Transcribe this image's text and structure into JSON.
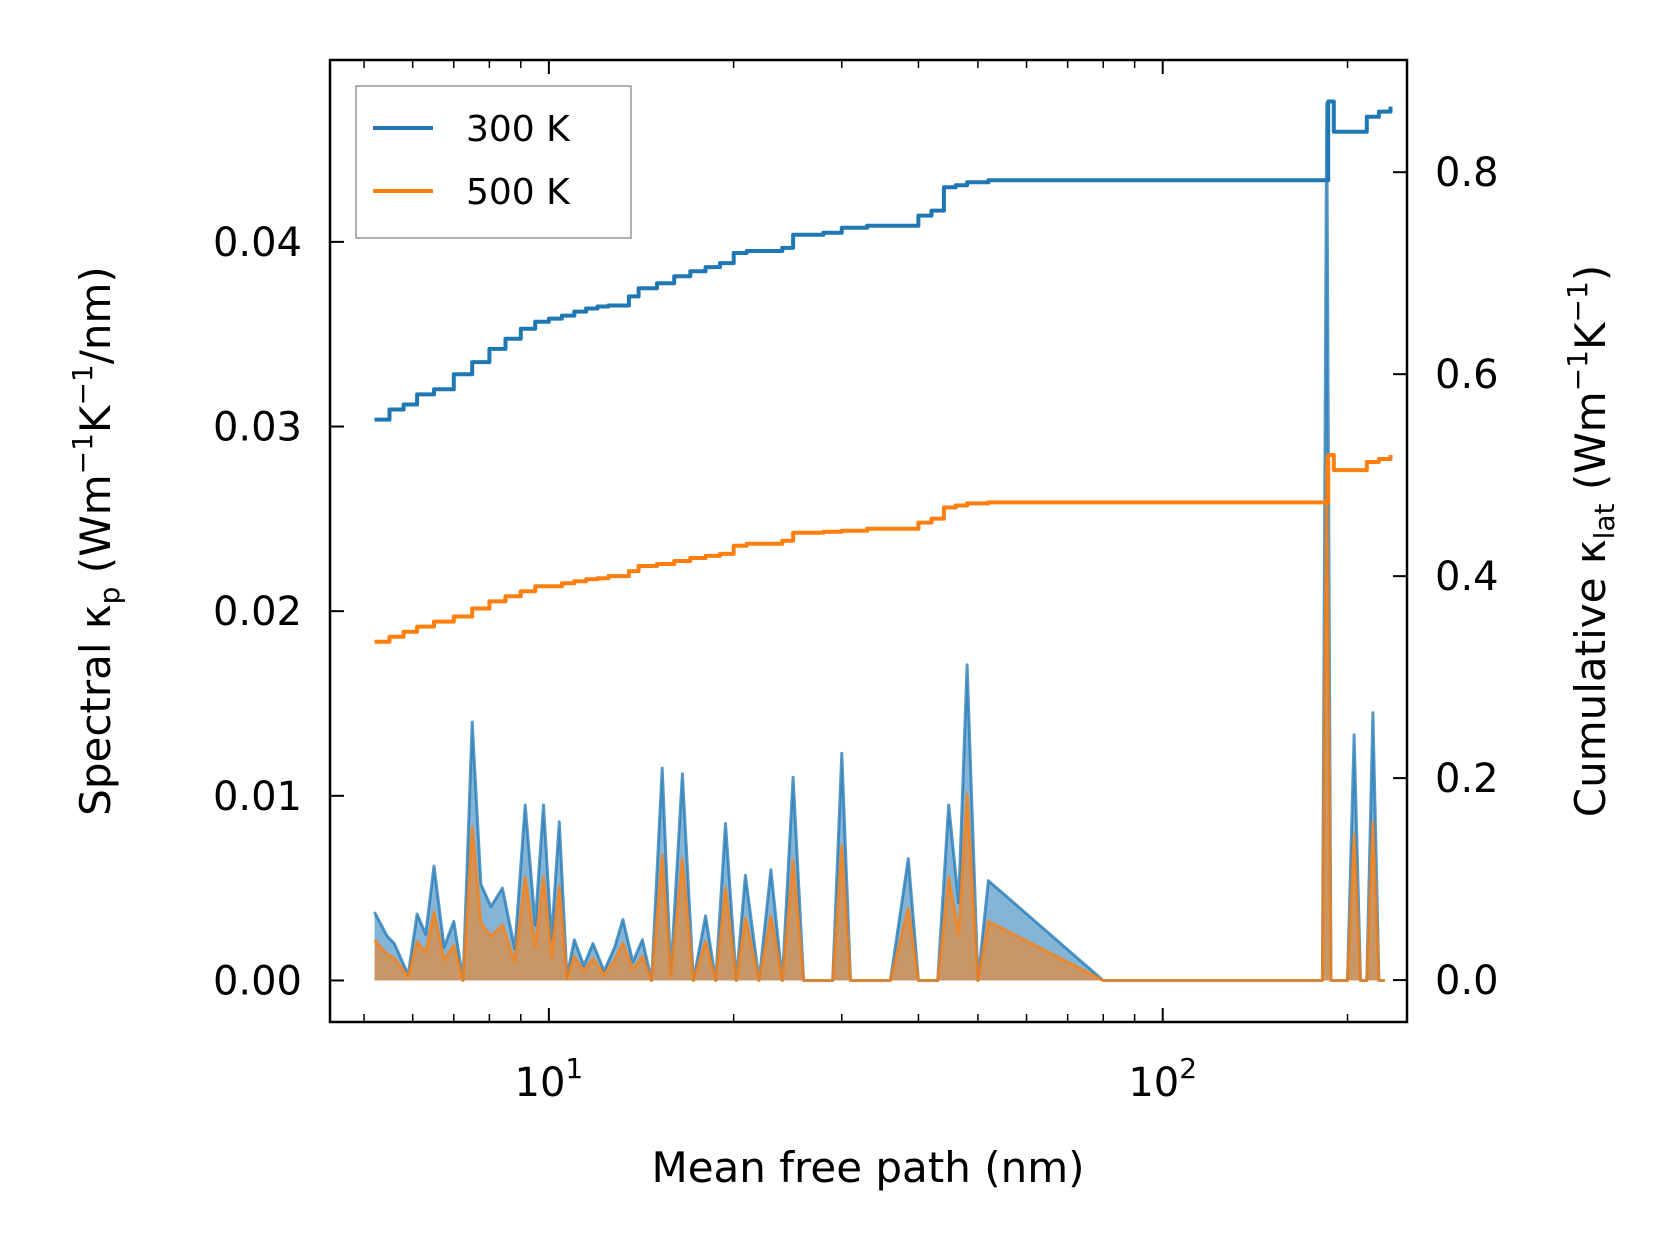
{
  "chart_data": {
    "type": "line",
    "title": "",
    "xlabel": "Mean free path (nm)",
    "x_scale": "log",
    "xlim": [
      4.4,
      250
    ],
    "x_ticks": [
      {
        "value": 10,
        "base": "10",
        "exp": "1"
      },
      {
        "value": 100,
        "base": "10",
        "exp": "2"
      }
    ],
    "ylabel_left": {
      "prefix": "Spectral κ",
      "sub": "p",
      "middle": " (Wm",
      "sup1": "−1",
      "mid2": "K",
      "sup2": "−1",
      "suffix": "/nm)"
    },
    "ylim_left": [
      -0.00225,
      0.04985
    ],
    "yticks_left": [
      "0.00",
      "0.01",
      "0.02",
      "0.03",
      "0.04"
    ],
    "ylabel_right": {
      "prefix": "Cumulative κ",
      "sub": "lat",
      "middle": " (Wm",
      "sup1": "−1",
      "mid2": "K",
      "sup2": "−1",
      "suffix": ")"
    },
    "ylim_right": [
      -0.0415,
      0.9111
    ],
    "yticks_right": [
      "0.0",
      "0.2",
      "0.4",
      "0.6",
      "0.8"
    ],
    "legend": {
      "position": "upper-left",
      "entries": [
        {
          "label": "300 K",
          "color": "#1f77b4"
        },
        {
          "label": "500 K",
          "color": "#ff7f0e"
        }
      ]
    },
    "colors": {
      "300K": "#1f77b4",
      "500K": "#ff7f0e",
      "fill": "#b9865a"
    },
    "cumulative": {
      "x": [
        5.2,
        5.5,
        5.8,
        6.1,
        6.5,
        7.0,
        7.5,
        8.0,
        8.5,
        9.0,
        9.5,
        10.0,
        10.5,
        11.0,
        11.5,
        12.0,
        12.5,
        13.5,
        14.0,
        15.0,
        16.0,
        17.0,
        18.0,
        19.0,
        20.0,
        21.0,
        22.0,
        24.0,
        25.0,
        28.0,
        30.0,
        33.0,
        37.0,
        40.0,
        42.0,
        44.0,
        46.0,
        48.0,
        52.0,
        60.0,
        80.0,
        120.0,
        182.0,
        186.0,
        190.0,
        205.0,
        215.0,
        225.0,
        235.0
      ],
      "series": [
        {
          "name": "300 K",
          "values": [
            0.555,
            0.565,
            0.57,
            0.58,
            0.585,
            0.6,
            0.612,
            0.625,
            0.635,
            0.645,
            0.652,
            0.655,
            0.658,
            0.662,
            0.665,
            0.667,
            0.668,
            0.677,
            0.685,
            0.69,
            0.697,
            0.702,
            0.706,
            0.71,
            0.72,
            0.722,
            0.722,
            0.725,
            0.738,
            0.74,
            0.745,
            0.747,
            0.747,
            0.757,
            0.762,
            0.785,
            0.787,
            0.79,
            0.792,
            0.792,
            0.792,
            0.792,
            0.792,
            0.87,
            0.84,
            0.84,
            0.855,
            0.86,
            0.865
          ]
        },
        {
          "name": "500 K",
          "values": [
            0.335,
            0.34,
            0.345,
            0.35,
            0.355,
            0.36,
            0.368,
            0.375,
            0.38,
            0.385,
            0.39,
            0.39,
            0.393,
            0.395,
            0.397,
            0.398,
            0.4,
            0.405,
            0.41,
            0.412,
            0.415,
            0.418,
            0.42,
            0.422,
            0.43,
            0.432,
            0.432,
            0.435,
            0.443,
            0.444,
            0.445,
            0.447,
            0.447,
            0.453,
            0.457,
            0.468,
            0.47,
            0.472,
            0.473,
            0.473,
            0.473,
            0.473,
            0.473,
            0.52,
            0.505,
            0.505,
            0.513,
            0.516,
            0.52
          ]
        }
      ]
    },
    "spectral": {
      "x": [
        5.2,
        5.45,
        5.6,
        5.9,
        6.1,
        6.3,
        6.5,
        6.75,
        7.0,
        7.25,
        7.5,
        7.75,
        8.05,
        8.4,
        8.8,
        9.15,
        9.5,
        9.8,
        10.1,
        10.4,
        10.7,
        11.0,
        11.4,
        11.8,
        12.3,
        12.8,
        13.2,
        13.7,
        14.2,
        14.7,
        15.3,
        15.8,
        16.5,
        17.2,
        18.0,
        18.7,
        19.4,
        20.2,
        20.9,
        22.0,
        23.0,
        24.0,
        25.0,
        26.0,
        27.5,
        29.0,
        30.0,
        31.0,
        33.0,
        36.0,
        38.5,
        40.0,
        41.5,
        43.0,
        44.8,
        46.5,
        48.0,
        50.0,
        52.0,
        80.0,
        120.0,
        177.0,
        182.0,
        185.0,
        188.0,
        195.0,
        200.0,
        205.0,
        210.0,
        215.0,
        220.0,
        225.0,
        230.0
      ],
      "series": [
        {
          "name": "300 K",
          "values": [
            0.0037,
            0.0024,
            0.002,
            0.0003,
            0.0036,
            0.0025,
            0.0062,
            0.0018,
            0.0032,
            0.0,
            0.014,
            0.0052,
            0.004,
            0.005,
            0.0017,
            0.0095,
            0.003,
            0.0095,
            0.0022,
            0.0086,
            0.0002,
            0.0022,
            0.0008,
            0.002,
            0.0005,
            0.0018,
            0.0033,
            0.001,
            0.0022,
            0.0,
            0.0115,
            0.0003,
            0.0112,
            0.0,
            0.0035,
            0.0,
            0.0085,
            0.0,
            0.0057,
            0.0,
            0.006,
            0.0,
            0.011,
            0.0,
            0.0,
            0.0,
            0.0123,
            0.0,
            0.0,
            0.0,
            0.0066,
            0.0,
            0.0,
            0.0,
            0.0095,
            0.0042,
            0.0171,
            0.0,
            0.0054,
            0.0,
            0.0,
            0.0,
            0.0,
            0.0475,
            0.0,
            0.0,
            0.0,
            0.0133,
            0.0,
            0.0,
            0.0145,
            0.0,
            0.0
          ]
        },
        {
          "name": "500 K",
          "values": [
            0.0022,
            0.0014,
            0.0012,
            0.0002,
            0.0021,
            0.0015,
            0.0037,
            0.0011,
            0.0019,
            0.0,
            0.0083,
            0.0031,
            0.0024,
            0.003,
            0.001,
            0.0056,
            0.0018,
            0.0056,
            0.0013,
            0.0051,
            0.0001,
            0.0013,
            0.0005,
            0.0012,
            0.0003,
            0.0011,
            0.002,
            0.0006,
            0.0013,
            0.0,
            0.0068,
            0.0002,
            0.0066,
            0.0,
            0.0021,
            0.0,
            0.005,
            0.0,
            0.0034,
            0.0,
            0.0035,
            0.0,
            0.0065,
            0.0,
            0.0,
            0.0,
            0.0073,
            0.0,
            0.0,
            0.0,
            0.0039,
            0.0,
            0.0,
            0.0,
            0.0056,
            0.0025,
            0.0101,
            0.0,
            0.0032,
            0.0,
            0.0,
            0.0,
            0.0,
            0.0283,
            0.0,
            0.0,
            0.0,
            0.0079,
            0.0,
            0.0,
            0.0086,
            0.0,
            0.0
          ]
        }
      ]
    }
  }
}
